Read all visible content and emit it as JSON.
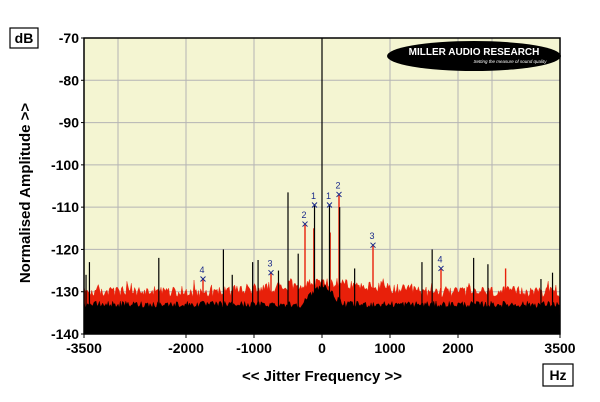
{
  "chart_data": {
    "type": "line",
    "xlabel": "<< Jitter Frequency >>",
    "ylabel": "Normalised Amplitude >>",
    "x_unit": "Hz",
    "y_unit": "dB",
    "xlim": [
      -3500,
      3500
    ],
    "ylim": [
      -140,
      -70
    ],
    "x_ticks": [
      -3500,
      -2000,
      -1000,
      0,
      1000,
      2000,
      3500
    ],
    "x_tick_labels": [
      "-3500",
      "-2000",
      "-1000",
      "0",
      "1000",
      "2000",
      "3500"
    ],
    "y_ticks": [
      -70,
      -80,
      -90,
      -100,
      -110,
      -120,
      -130,
      -140
    ],
    "y_tick_labels": [
      "-70",
      "-80",
      "-90",
      "-100",
      "-110",
      "-120",
      "-130",
      "-140"
    ],
    "grid": true,
    "series": [
      {
        "color": "#e8200a",
        "noise_floor": -130,
        "spikes": [
          {
            "x": -250,
            "y": -114
          },
          {
            "x": 250,
            "y": -107
          },
          {
            "x": -750,
            "y": -125.5
          },
          {
            "x": 750,
            "y": -119
          },
          {
            "x": -1750,
            "y": -127
          },
          {
            "x": 1750,
            "y": -124.5
          },
          {
            "x": -120,
            "y": -115
          },
          {
            "x": 120,
            "y": -116
          },
          {
            "x": 2700,
            "y": -124.5
          }
        ]
      },
      {
        "color": "#000000",
        "noise_floor": -133,
        "spikes": [
          {
            "x": 0,
            "y": -70
          },
          {
            "x": -110,
            "y": -109.5
          },
          {
            "x": 110,
            "y": -109.5
          },
          {
            "x": -500,
            "y": -106.5
          },
          {
            "x": 260,
            "y": -110
          },
          {
            "x": -3470,
            "y": -126
          },
          {
            "x": -3420,
            "y": -123
          },
          {
            "x": -2400,
            "y": -122
          },
          {
            "x": -1450,
            "y": -120
          },
          {
            "x": -1320,
            "y": -126
          },
          {
            "x": -1020,
            "y": -123
          },
          {
            "x": -940,
            "y": -122.5
          },
          {
            "x": -640,
            "y": -125
          },
          {
            "x": -350,
            "y": -121
          },
          {
            "x": 480,
            "y": -124.5
          },
          {
            "x": 1470,
            "y": -123
          },
          {
            "x": 1620,
            "y": -120
          },
          {
            "x": 2230,
            "y": -122
          },
          {
            "x": 2440,
            "y": -123.5
          },
          {
            "x": 3220,
            "y": -127
          },
          {
            "x": 3390,
            "y": -125.5
          }
        ]
      }
    ],
    "markers": [
      {
        "label": "1",
        "x": -110,
        "y": -109.5
      },
      {
        "label": "1",
        "x": 110,
        "y": -109.5
      },
      {
        "label": "2",
        "x": -250,
        "y": -114
      },
      {
        "label": "2",
        "x": 250,
        "y": -107
      },
      {
        "label": "3",
        "x": -750,
        "y": -125.5
      },
      {
        "label": "3",
        "x": 750,
        "y": -119
      },
      {
        "label": "4",
        "x": -1750,
        "y": -127
      },
      {
        "label": "4",
        "x": 1750,
        "y": -124.5
      }
    ],
    "plot_background": "#f4f5d2",
    "grid_color": "#b4b4b4",
    "marker_color": "#1a2a8a"
  },
  "logo": {
    "name": "MILLER AUDIO RESEARCH",
    "tagline": "Setting the measure of sound quality"
  }
}
